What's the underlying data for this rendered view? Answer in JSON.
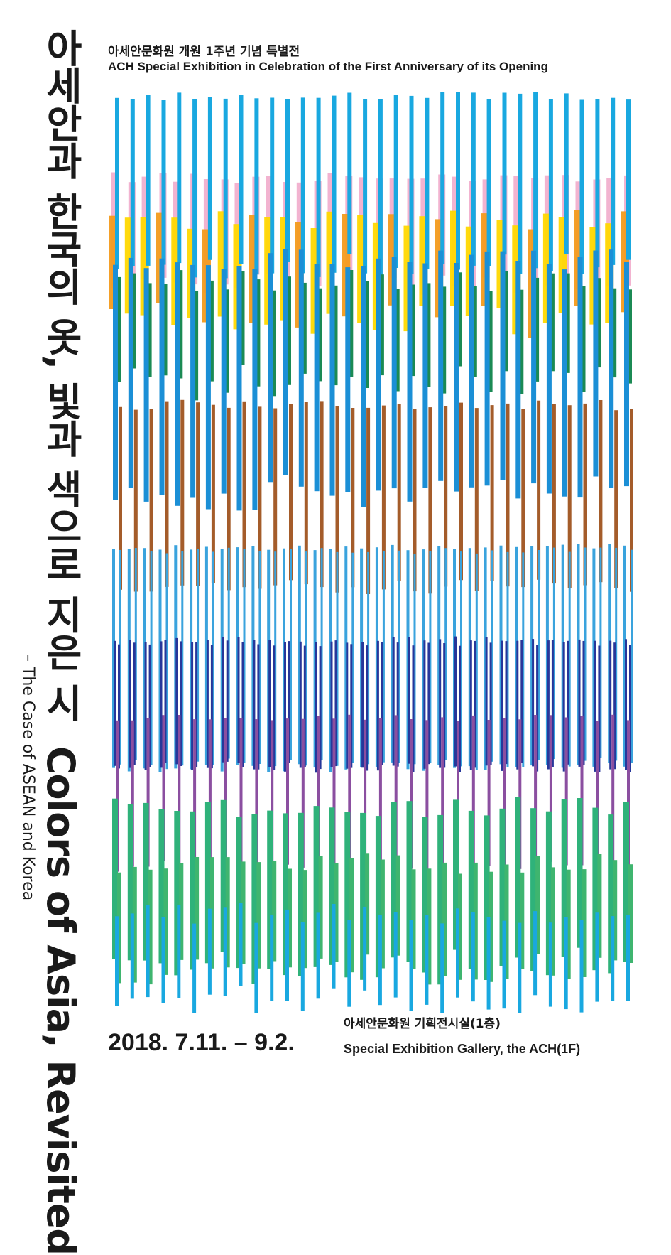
{
  "title": {
    "korean_line": "아세안과 한국의 옷, 빛과 색으로 지은 시",
    "english_line": "Colors of Asia, Revisited",
    "subtitle": "– The Case of ASEAN and Korea"
  },
  "header": {
    "korean": "아세안문화원 개원 1주년 기념 특별전",
    "english": "ACH Special Exhibition in Celebration of the First Anniversary of its Opening"
  },
  "footer": {
    "dates": "2018. 7.11. – 9.2.",
    "venue_korean": "아세안문화원 기획전시실(1층)",
    "venue_english": "Special Exhibition Gallery, the ACH(1F)"
  },
  "palette": {
    "cyan": "#19a8e0",
    "blue": "#1b8fd6",
    "pink": "#f0a6c8",
    "yellow": "#ffd800",
    "orange": "#f39b1c",
    "green": "#1b8a54",
    "brown": "#a45c2a",
    "sky": "#3aa3dd",
    "navy": "#27379a",
    "purple": "#8b4fa0",
    "teal": "#2fb27a",
    "lightgreen": "#3fb56f"
  }
}
